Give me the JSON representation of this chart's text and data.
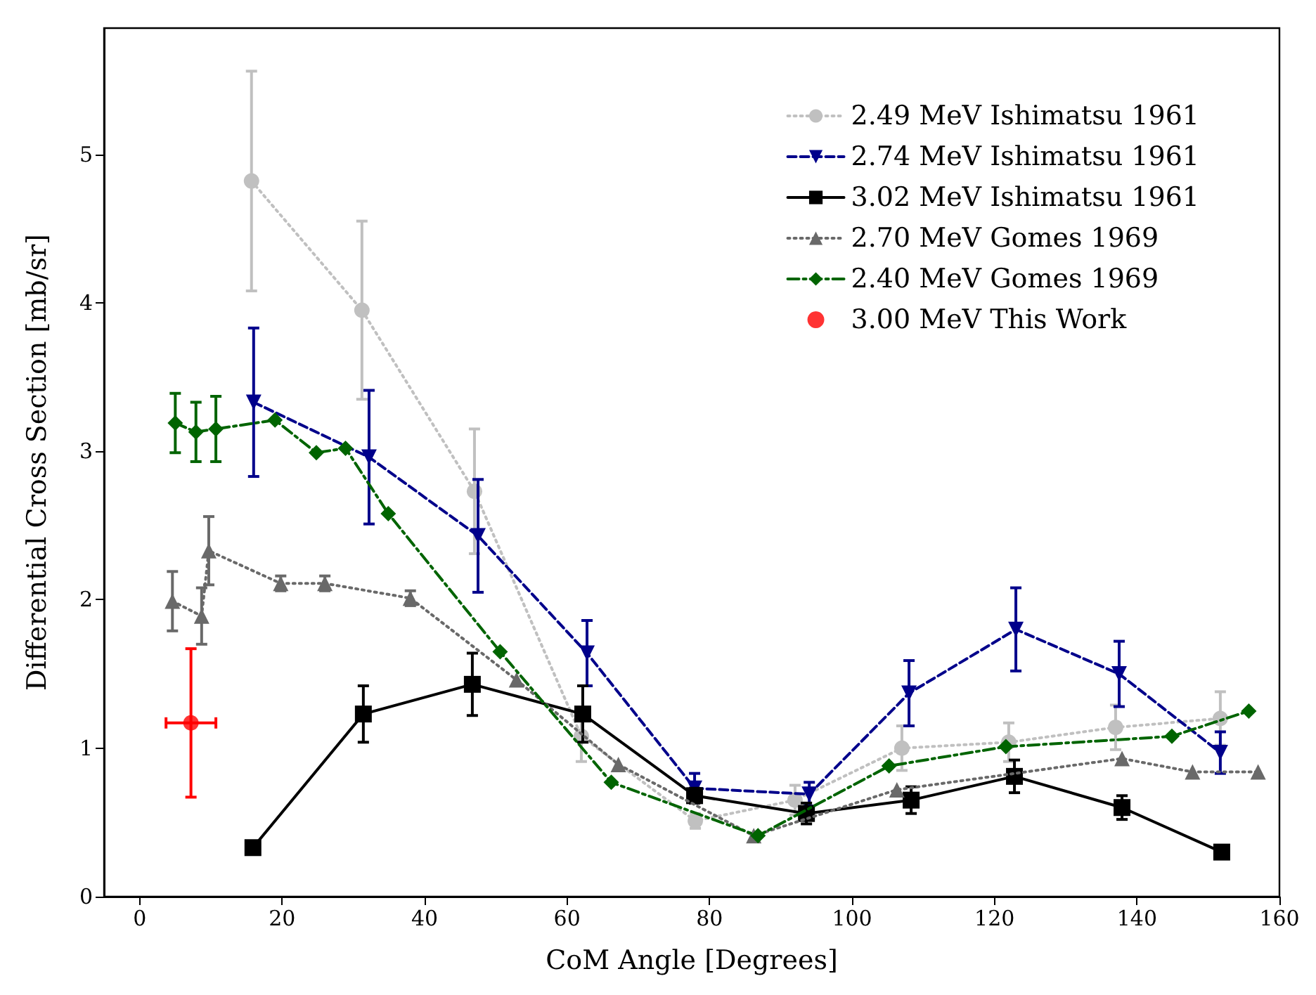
{
  "chart_data": {
    "type": "line",
    "xlabel": "CoM Angle [Degrees]",
    "ylabel": "Differential Cross Section [mb/sr]",
    "xlim": [
      -5,
      160
    ],
    "xticks": [
      0,
      20,
      40,
      60,
      80,
      100,
      120,
      140,
      160
    ],
    "ylim": [
      0,
      5.85
    ],
    "yticks": [
      0,
      1,
      2,
      3,
      4,
      5
    ],
    "legend": "top right",
    "series": [
      {
        "name": "2.49 MeV Ishimatsu 1961",
        "color": "#c0c0c0",
        "marker": "circle",
        "line_style": "dotted",
        "x": [
          15.7,
          31.2,
          47,
          62,
          78,
          92,
          107,
          122,
          137,
          151.7
        ],
        "values": [
          4.82,
          3.95,
          2.73,
          1.08,
          0.51,
          0.65,
          1.0,
          1.04,
          1.14,
          1.2
        ],
        "errors": [
          0.74,
          0.6,
          0.42,
          0.17,
          0.05,
          0.1,
          0.15,
          0.13,
          0.15,
          0.18
        ]
      },
      {
        "name": "2.74 MeV Ishimatsu 1961",
        "color": "#00008b",
        "marker": "triangle-down",
        "line_style": "dashed",
        "x": [
          16,
          32.2,
          47.5,
          62.8,
          77.9,
          94,
          108,
          123,
          137.5,
          151.7
        ],
        "values": [
          3.33,
          2.96,
          2.43,
          1.64,
          0.73,
          0.69,
          1.37,
          1.8,
          1.5,
          0.97
        ],
        "errors": [
          0.5,
          0.45,
          0.38,
          0.22,
          0.1,
          0.08,
          0.22,
          0.28,
          0.22,
          0.14
        ]
      },
      {
        "name": "3.02 MeV Ishimatsu 1961",
        "color": "#000000",
        "marker": "square",
        "line_style": "solid",
        "x": [
          15.9,
          31.4,
          46.7,
          62.2,
          77.9,
          93.6,
          108.3,
          122.8,
          137.9,
          151.9
        ],
        "values": [
          0.33,
          1.23,
          1.43,
          1.23,
          0.68,
          0.56,
          0.65,
          0.81,
          0.6,
          0.3
        ],
        "errors": [
          null,
          0.19,
          0.21,
          0.19,
          0.05,
          0.07,
          0.09,
          0.11,
          0.08,
          null
        ]
      },
      {
        "name": "2.70 MeV Gomes 1969",
        "color": "#696969",
        "marker": "triangle",
        "line_style": "dotted",
        "x": [
          4.6,
          8.7,
          9.7,
          19.8,
          26,
          38,
          52.9,
          67.2,
          86.2,
          106.3,
          137.9,
          147.8,
          157
        ],
        "values": [
          1.99,
          1.89,
          2.33,
          2.11,
          2.11,
          2.01,
          1.46,
          0.89,
          0.41,
          0.72,
          0.93,
          0.84,
          0.84
        ],
        "errors": [
          0.2,
          0.19,
          0.23,
          0.05,
          0.05,
          0.05,
          null,
          null,
          null,
          null,
          null,
          null,
          null
        ]
      },
      {
        "name": "2.40 MeV Gomes 1969",
        "color": "#006400",
        "marker": "diamond",
        "line_style": "dashdot",
        "x": [
          5,
          7.9,
          10.7,
          19,
          24.8,
          28.9,
          34.9,
          50.6,
          66.2,
          86.8,
          105.2,
          121.6,
          144.9,
          155.7
        ],
        "values": [
          3.19,
          3.13,
          3.15,
          3.21,
          2.99,
          3.02,
          2.58,
          1.65,
          0.77,
          0.41,
          0.88,
          1.01,
          1.08,
          1.25
        ],
        "errors": [
          0.2,
          0.2,
          0.22,
          null,
          null,
          null,
          null,
          null,
          null,
          null,
          null,
          null,
          null,
          null
        ]
      },
      {
        "name": "3.00 MeV This Work",
        "color": "#ff0000",
        "type": "scatter",
        "marker": "circle",
        "x": [
          7.2
        ],
        "values": [
          1.17
        ],
        "errors": [
          0.5
        ],
        "xerrors": [
          3.5
        ]
      }
    ]
  }
}
